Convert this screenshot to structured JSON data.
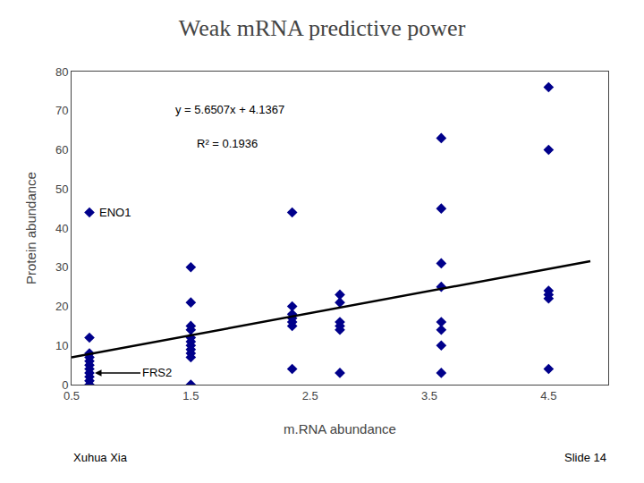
{
  "chart_data": {
    "type": "scatter",
    "title": "Weak mRNA predictive power",
    "x_label": "m.RNA abundance",
    "y_label": "Protein abundance",
    "xlim": [
      0.5,
      5.0
    ],
    "ylim": [
      0,
      80
    ],
    "xticks": [
      0.5,
      1.5,
      2.5,
      3.5,
      4.5
    ],
    "yticks": [
      0,
      10,
      20,
      30,
      40,
      50,
      60,
      70,
      80
    ],
    "series": [
      {
        "type": "scatter",
        "color": "#00008B",
        "marker": "diamond",
        "x": [
          0.65,
          0.65,
          0.65,
          0.65,
          0.65,
          0.65,
          0.65,
          0.65,
          0.65,
          0.65,
          0.65,
          1.5,
          1.5,
          1.5,
          1.5,
          1.5,
          1.5,
          1.5,
          1.5,
          1.5,
          1.5,
          1.5,
          2.35,
          2.35,
          2.35,
          2.35,
          2.35,
          2.35,
          2.35,
          2.75,
          2.75,
          2.75,
          2.75,
          2.75,
          2.75,
          3.6,
          3.6,
          3.6,
          3.6,
          3.6,
          3.6,
          3.6,
          3.6,
          4.5,
          4.5,
          4.5,
          4.5,
          4.5,
          4.5
        ],
        "values": [
          44,
          12,
          8,
          7,
          6,
          5,
          4,
          3,
          2,
          1,
          0,
          30,
          21,
          15,
          14,
          12,
          11,
          10,
          9,
          8,
          7,
          0,
          44,
          20,
          18,
          17,
          16,
          15,
          4,
          23,
          21,
          16,
          15,
          14,
          3,
          63,
          45,
          31,
          25,
          16,
          14,
          10,
          3,
          76,
          60,
          24,
          23,
          22,
          4
        ]
      },
      {
        "type": "line",
        "color": "#000000",
        "line_style": "solid",
        "x": [
          0.5,
          4.85
        ],
        "values": [
          6.96205,
          31.542595
        ]
      }
    ],
    "annotations": [
      {
        "text": "y = 5.6507x + 4.1367"
      },
      {
        "text": "R² = 0.1936"
      },
      {
        "text": "ENO1",
        "x": 0.65,
        "y": 44
      },
      {
        "text": "FRS2",
        "x": 0.65,
        "y": 3,
        "arrow": true
      }
    ],
    "footer": [
      "Xuhua Xia",
      "Slide 14"
    ],
    "grid": false
  }
}
